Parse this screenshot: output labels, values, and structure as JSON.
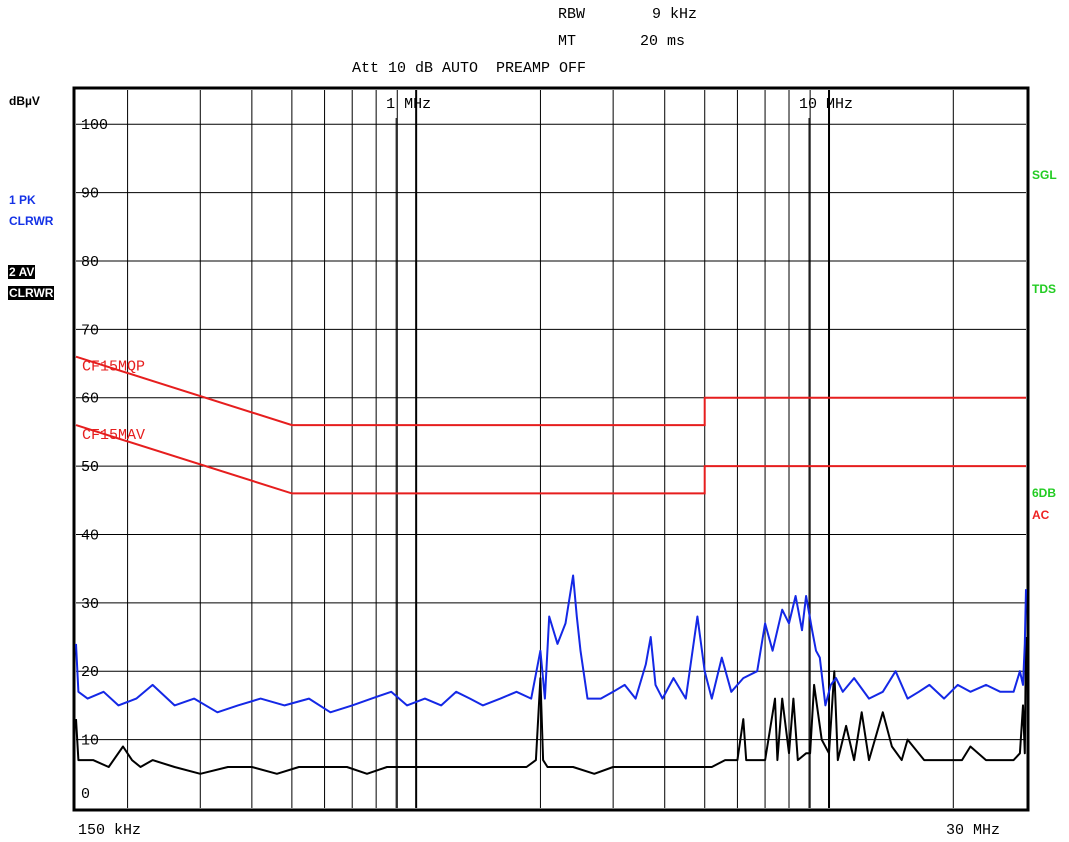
{
  "header": {
    "rbw_label": "RBW",
    "rbw_value": "9 kHz",
    "mt_label": "MT",
    "mt_value": "20 ms",
    "settings": "Att 10 dB AUTO  PREAMP OFF"
  },
  "unit_label": "dBµV",
  "left_indicators": {
    "trace1_line1": "1 PK",
    "trace1_line2": "CLRWR",
    "trace2_line1": "2 AV",
    "trace2_line2": "CLRWR"
  },
  "right_indicators": {
    "sgl": "SGL",
    "tds": "TDS",
    "sixdb": "6DB",
    "ac": "AC"
  },
  "colors": {
    "background": "#ffffff",
    "grid": "#000000",
    "peak_trace": "#1428e6",
    "avg_trace": "#000000",
    "limit": "#e61e1e",
    "status_green": "#22cc22",
    "status_red": "#ee2222",
    "blue_label": "#1432e6"
  },
  "footer": {
    "start": "150 kHz",
    "stop": "30 MHz"
  },
  "chart_data": {
    "type": "line",
    "xscale": "log",
    "xlim_hz": [
      150000,
      30000000
    ],
    "ylim": [
      0,
      105
    ],
    "ylabel": "dBµV",
    "y_ticks": [
      0,
      10,
      20,
      30,
      40,
      50,
      60,
      70,
      80,
      90,
      100
    ],
    "y_tick_labels": [
      "0",
      "10",
      "20",
      "30",
      "40",
      "50",
      "60",
      "70",
      "80",
      "90",
      "100"
    ],
    "x_marks": [
      {
        "label": "1 MHz",
        "hz": 1000000
      },
      {
        "label": "10 MHz",
        "hz": 10000000
      }
    ],
    "grid": true,
    "limit_lines": [
      {
        "name": "CF15MQP",
        "points": [
          [
            150000,
            66
          ],
          [
            500000,
            56
          ],
          [
            5000000,
            56
          ],
          [
            5000000,
            60
          ],
          [
            30000000,
            60
          ]
        ]
      },
      {
        "name": "CF15MAV",
        "points": [
          [
            150000,
            56
          ],
          [
            500000,
            46
          ],
          [
            5000000,
            46
          ],
          [
            5000000,
            50
          ],
          [
            30000000,
            50
          ]
        ]
      }
    ],
    "series": [
      {
        "name": "1 PK",
        "x_hz": [
          150000,
          152000,
          160000,
          175000,
          190000,
          210000,
          230000,
          260000,
          290000,
          330000,
          370000,
          420000,
          480000,
          550000,
          620000,
          700000,
          780000,
          870000,
          950000,
          1050000,
          1150000,
          1250000,
          1350000,
          1450000,
          1600000,
          1750000,
          1900000,
          2000000,
          2050000,
          2100000,
          2200000,
          2300000,
          2400000,
          2450000,
          2500000,
          2600000,
          2800000,
          3000000,
          3200000,
          3400000,
          3600000,
          3700000,
          3800000,
          3950000,
          4200000,
          4500000,
          4800000,
          5000000,
          5200000,
          5500000,
          5800000,
          6200000,
          6700000,
          7000000,
          7300000,
          7700000,
          8000000,
          8300000,
          8600000,
          8800000,
          9100000,
          9300000,
          9500000,
          9800000,
          10100000,
          10400000,
          10800000,
          11500000,
          12500000,
          13500000,
          14500000,
          15500000,
          16500000,
          17500000,
          19000000,
          20500000,
          22000000,
          24000000,
          26000000,
          28000000,
          29000000,
          29500000,
          29800000,
          30000000
        ],
        "values": [
          24,
          17,
          16,
          17,
          15,
          16,
          18,
          15,
          16,
          14,
          15,
          16,
          15,
          16,
          14,
          15,
          16,
          17,
          15,
          16,
          15,
          17,
          16,
          15,
          16,
          17,
          16,
          23,
          16,
          28,
          24,
          27,
          34,
          28,
          23,
          16,
          16,
          17,
          18,
          16,
          21,
          25,
          18,
          16,
          19,
          16,
          28,
          20,
          16,
          22,
          17,
          19,
          20,
          27,
          23,
          29,
          27,
          31,
          26,
          31,
          26,
          23,
          22,
          15,
          18,
          19,
          17,
          19,
          16,
          17,
          20,
          16,
          17,
          18,
          16,
          18,
          17,
          18,
          17,
          17,
          20,
          18,
          24,
          32
        ]
      },
      {
        "name": "2 AV",
        "x_hz": [
          150000,
          152000,
          165000,
          180000,
          195000,
          205000,
          215000,
          230000,
          260000,
          300000,
          350000,
          400000,
          460000,
          520000,
          600000,
          680000,
          760000,
          850000,
          950000,
          1050000,
          1150000,
          1250000,
          1400000,
          1550000,
          1700000,
          1850000,
          1950000,
          2000000,
          2030000,
          2080000,
          2200000,
          2400000,
          2700000,
          3000000,
          3300000,
          3600000,
          4000000,
          4400000,
          4800000,
          5200000,
          5600000,
          6000000,
          6200000,
          6300000,
          6500000,
          7000000,
          7400000,
          7500000,
          7700000,
          8000000,
          8200000,
          8400000,
          8800000,
          9000000,
          9200000,
          9600000,
          10000000,
          10300000,
          10500000,
          11000000,
          11500000,
          12000000,
          12500000,
          13500000,
          14200000,
          15000000,
          15500000,
          17000000,
          19000000,
          21000000,
          22000000,
          24000000,
          26000000,
          28000000,
          29000000,
          29500000,
          29800000,
          30000000
        ],
        "values": [
          13,
          7,
          7,
          6,
          9,
          7,
          6,
          7,
          6,
          5,
          6,
          6,
          5,
          6,
          6,
          6,
          5,
          6,
          6,
          6,
          6,
          6,
          6,
          6,
          6,
          6,
          7,
          19,
          7,
          6,
          6,
          6,
          5,
          6,
          6,
          6,
          6,
          6,
          6,
          6,
          7,
          7,
          13,
          7,
          7,
          7,
          16,
          7,
          16,
          8,
          16,
          7,
          8,
          8,
          18,
          10,
          8,
          20,
          7,
          12,
          7,
          14,
          7,
          14,
          9,
          7,
          10,
          7,
          7,
          7,
          9,
          7,
          7,
          7,
          8,
          15,
          8,
          25
        ]
      }
    ]
  }
}
